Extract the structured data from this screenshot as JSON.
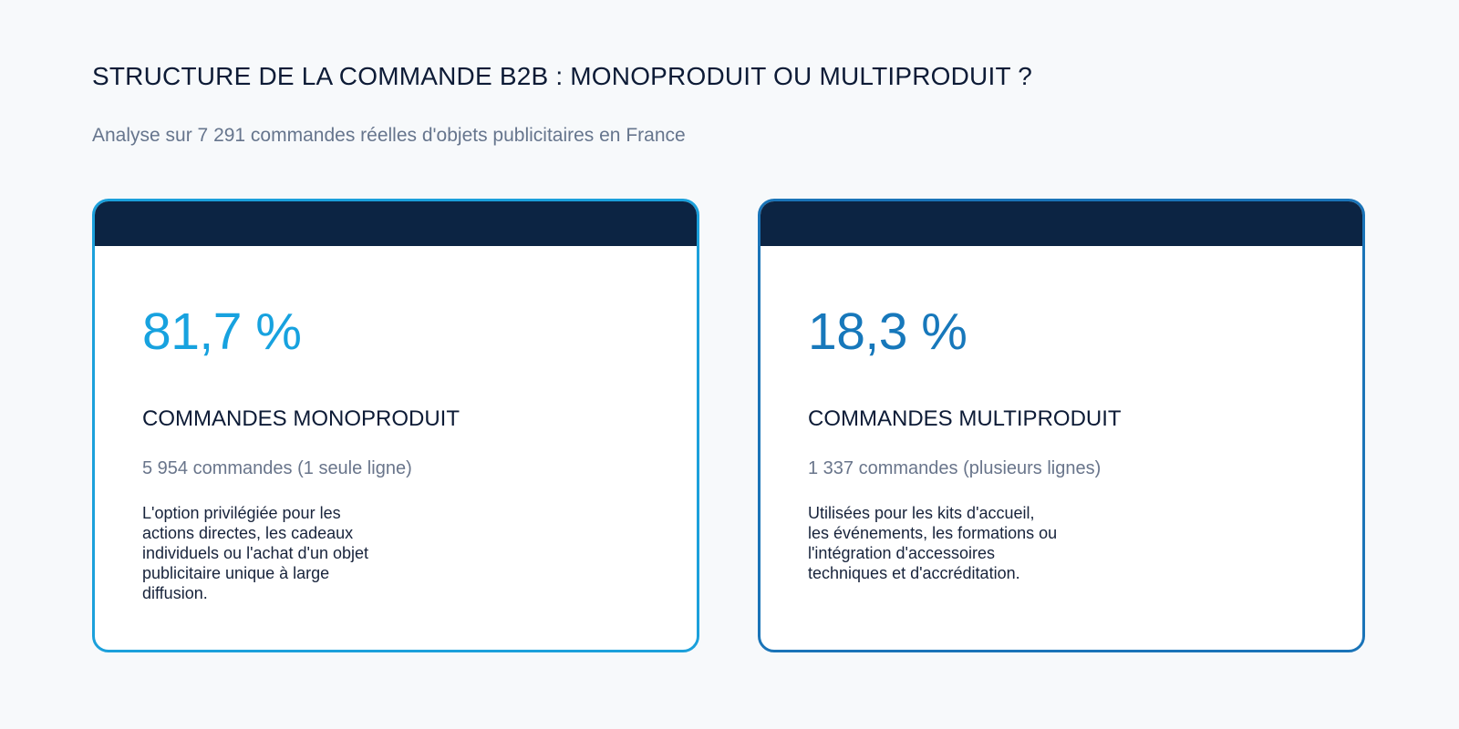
{
  "page": {
    "title": "STRUCTURE DE LA COMMANDE B2B : MONOPRODUIT OU MULTIPRODUIT ?",
    "subtitle": "Analyse sur 7 291 commandes réelles d'objets publicitaires en France"
  },
  "cards": [
    {
      "percentage": "81,7 %",
      "label": "COMMANDES MONOPRODUIT",
      "count": "5 954 commandes (1 seule ligne)",
      "description": "L'option privilégiée pour les\nactions directes, les cadeaux\nindividuels ou l'achat d'un objet\npublicitaire unique à large\ndiffusion.",
      "accent_color": "#17a2df"
    },
    {
      "percentage": "18,3 %",
      "label": "COMMANDES MULTIPRODUIT",
      "count": "1 337 commandes (plusieurs lignes)",
      "description": "Utilisées pour les kits d'accueil,\nles événements, les formations ou\nl'intégration d'accessoires\ntechniques et d'accréditation.",
      "accent_color": "#1778bb"
    }
  ],
  "colors": {
    "background": "#f7f9fb",
    "header_bar": "#0c2443",
    "heading_text": "#0d1b36",
    "muted_text": "#66758d"
  }
}
